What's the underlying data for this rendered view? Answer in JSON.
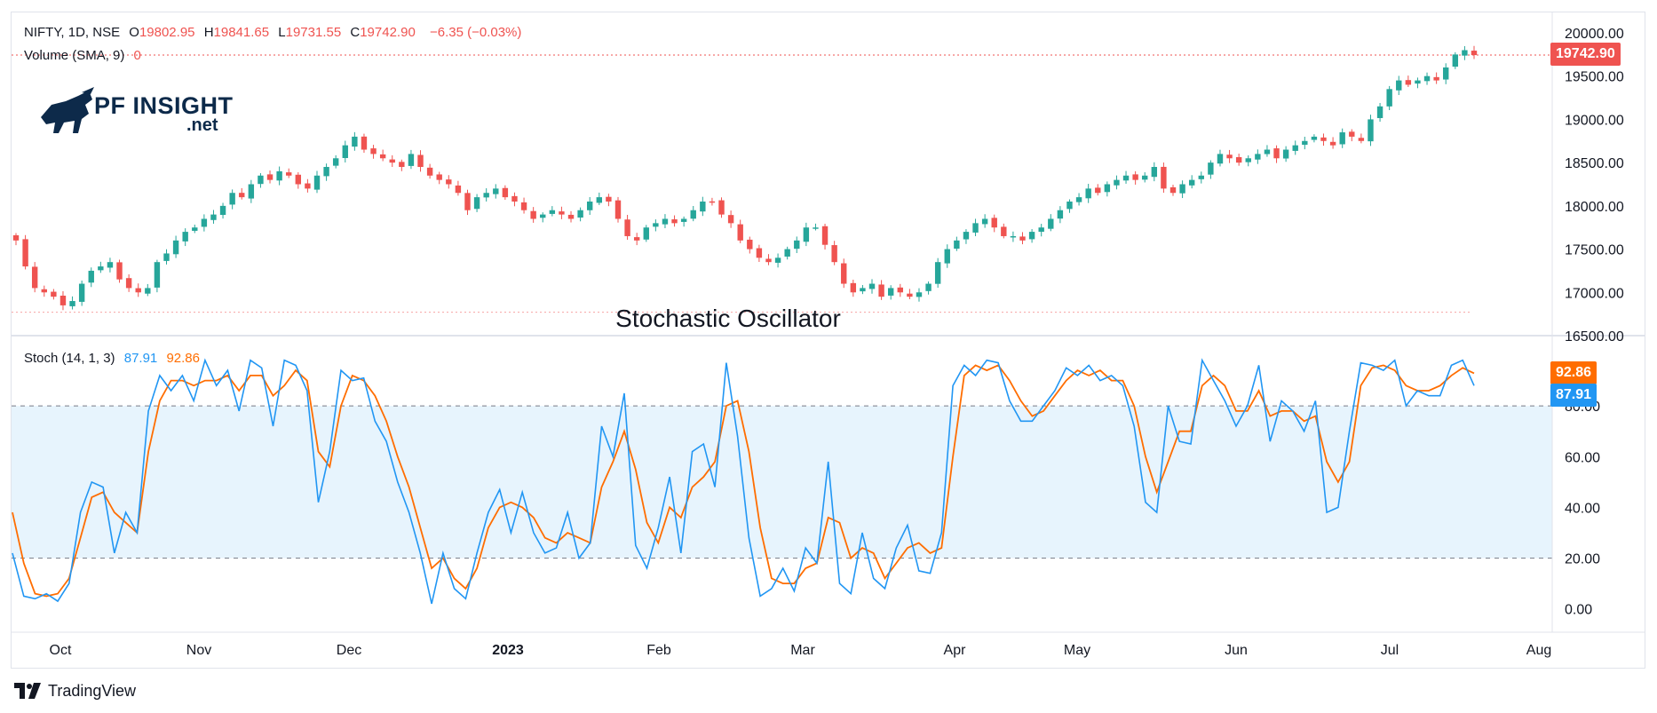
{
  "header": {
    "symbol": "NIFTY, 1D, NSE",
    "o_label": "O",
    "o_value": "19802.95",
    "h_label": "H",
    "h_value": "19841.65",
    "l_label": "L",
    "l_value": "19731.55",
    "c_label": "C",
    "c_value": "19742.90",
    "change": "−6.35 (−0.03%)",
    "volume_label": "Volume (SMA, 9)",
    "volume_value": "0"
  },
  "logo": {
    "title": "PF INSIGHT",
    "subtitle": ".net"
  },
  "annotation": "Stochastic Oscillator",
  "stoch_legend": {
    "label": "Stoch (14, 1, 3)",
    "k_value": "87.91",
    "d_value": "92.86"
  },
  "footer": {
    "brand": "TradingView"
  },
  "colors": {
    "up": "#26a69a",
    "down": "#ef5350",
    "k_line": "#2196f3",
    "d_line": "#ff6d00",
    "band_fill": "#e3f2fd"
  },
  "chart_data": [
    {
      "type": "candlestick",
      "ylim": [
        16500,
        20000
      ],
      "y_ticks": [
        "20000.00",
        "19500.00",
        "19000.00",
        "18500.00",
        "18000.00",
        "17500.00",
        "17000.00",
        "16500.00"
      ],
      "last_price": "19742.90",
      "x_ticks": [
        "Oct",
        "Nov",
        "Dec",
        "2023",
        "Feb",
        "Mar",
        "Apr",
        "May",
        "Jun",
        "Jul",
        "Aug"
      ],
      "closes": [
        17600,
        17300,
        17050,
        17000,
        16950,
        16850,
        16900,
        17100,
        17250,
        17300,
        17350,
        17150,
        17050,
        17000,
        17050,
        17350,
        17450,
        17600,
        17700,
        17750,
        17850,
        17900,
        18000,
        18150,
        18100,
        18250,
        18350,
        18300,
        18400,
        18350,
        18250,
        18200,
        18350,
        18450,
        18550,
        18700,
        18800,
        18650,
        18600,
        18550,
        18500,
        18450,
        18600,
        18450,
        18350,
        18300,
        18250,
        18150,
        17950,
        18100,
        18150,
        18200,
        18100,
        18050,
        17950,
        17850,
        17900,
        17950,
        17900,
        17850,
        17950,
        18050,
        18100,
        18050,
        17850,
        17650,
        17600,
        17750,
        17800,
        17850,
        17800,
        17850,
        17950,
        18050,
        18050,
        17900,
        17800,
        17600,
        17500,
        17400,
        17350,
        17400,
        17500,
        17600,
        17750,
        17750,
        17550,
        17350,
        17100,
        17000,
        17050,
        17100,
        16950,
        17050,
        17000,
        16950,
        17000,
        17100,
        17350,
        17500,
        17600,
        17700,
        17800,
        17850,
        17750,
        17650,
        17650,
        17600,
        17700,
        17750,
        17850,
        17950,
        18050,
        18100,
        18200,
        18150,
        18250,
        18300,
        18350,
        18300,
        18350,
        18450,
        18200,
        18150,
        18250,
        18300,
        18350,
        18500,
        18600,
        18550,
        18500,
        18550,
        18600,
        18650,
        18550,
        18650,
        18700,
        18750,
        18800,
        18750,
        18700,
        18850,
        18800,
        18750,
        19000,
        19150,
        19350,
        19450,
        19400,
        19450,
        19500,
        19450,
        19600,
        19750,
        19800,
        19742.9
      ]
    },
    {
      "type": "line",
      "title": "Stoch (14, 1, 3)",
      "ylim": [
        -5,
        100
      ],
      "y_ticks": [
        "80.00",
        "60.00",
        "40.00",
        "20.00",
        "0.00"
      ],
      "band": [
        20,
        80
      ],
      "series": [
        {
          "name": "%K",
          "values": [
            22,
            5,
            4,
            6,
            3,
            10,
            38,
            50,
            48,
            22,
            38,
            30,
            78,
            92,
            86,
            92,
            82,
            98,
            88,
            94,
            78,
            98,
            95,
            72,
            98,
            96,
            86,
            42,
            62,
            94,
            90,
            91,
            74,
            66,
            50,
            38,
            22,
            2,
            22,
            8,
            4,
            22,
            38,
            47,
            30,
            46,
            30,
            22,
            24,
            38,
            20,
            26,
            72,
            60,
            85,
            25,
            16,
            32,
            52,
            22,
            62,
            65,
            48,
            97,
            68,
            28,
            5,
            8,
            16,
            7,
            24,
            18,
            58,
            10,
            6,
            30,
            12,
            8,
            24,
            33,
            15,
            14,
            30,
            88,
            96,
            92,
            98,
            97,
            82,
            74,
            74,
            80,
            86,
            95,
            92,
            96,
            90,
            92,
            88,
            72,
            42,
            38,
            80,
            66,
            65,
            98,
            90,
            82,
            72,
            80,
            96,
            66,
            82,
            78,
            70,
            82,
            38,
            40,
            70,
            97,
            96,
            94,
            98,
            80,
            86,
            84,
            84,
            96,
            98,
            88
          ]
        },
        {
          "name": "%D",
          "values": [
            38,
            18,
            6,
            5,
            6,
            12,
            28,
            44,
            46,
            38,
            34,
            30,
            62,
            82,
            90,
            90,
            88,
            90,
            90,
            92,
            86,
            92,
            92,
            84,
            88,
            94,
            90,
            62,
            56,
            80,
            92,
            90,
            84,
            74,
            60,
            48,
            32,
            16,
            20,
            12,
            8,
            16,
            32,
            40,
            42,
            40,
            36,
            28,
            26,
            30,
            28,
            26,
            48,
            58,
            70,
            55,
            34,
            26,
            40,
            36,
            48,
            52,
            58,
            80,
            82,
            62,
            32,
            12,
            10,
            10,
            16,
            18,
            36,
            34,
            20,
            24,
            22,
            12,
            18,
            24,
            26,
            22,
            24,
            60,
            92,
            96,
            94,
            96,
            90,
            82,
            76,
            78,
            84,
            90,
            94,
            92,
            94,
            90,
            90,
            80,
            60,
            46,
            58,
            70,
            70,
            88,
            92,
            88,
            78,
            78,
            86,
            76,
            78,
            78,
            74,
            76,
            58,
            50,
            58,
            88,
            95,
            96,
            94,
            88,
            86,
            86,
            88,
            92,
            95,
            92.86
          ]
        }
      ]
    }
  ]
}
